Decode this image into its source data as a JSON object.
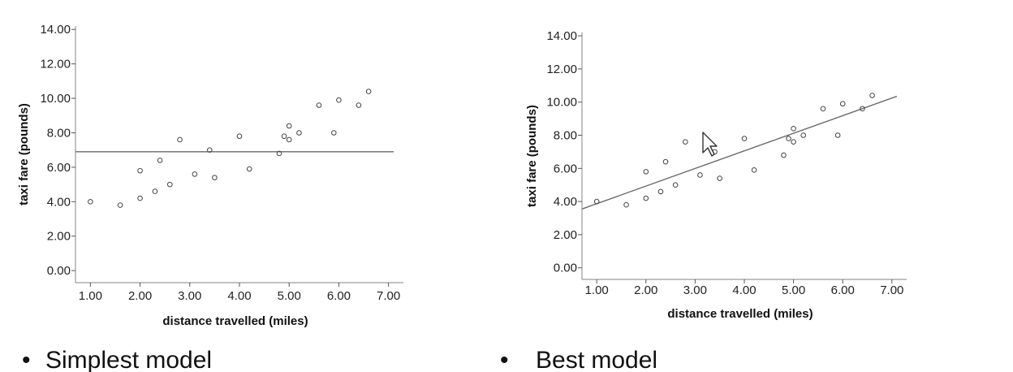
{
  "bullets": {
    "left": "Simplest model",
    "right": "Best model"
  },
  "chart_data": [
    {
      "type": "scatter",
      "title": "",
      "xlabel": "distance travelled (miles)",
      "ylabel": "taxi fare (pounds)",
      "xlim": [
        0.7,
        7.3
      ],
      "ylim": [
        -0.7,
        14.2
      ],
      "x_ticks": [
        "1.00",
        "2.00",
        "3.00",
        "4.00",
        "5.00",
        "6.00",
        "7.00"
      ],
      "y_ticks": [
        "0.00",
        "2.00",
        "4.00",
        "6.00",
        "8.00",
        "10.00",
        "12.00",
        "14.00"
      ],
      "points": [
        {
          "x": 1.0,
          "y": 4.0
        },
        {
          "x": 1.6,
          "y": 3.8
        },
        {
          "x": 2.0,
          "y": 4.2
        },
        {
          "x": 2.0,
          "y": 5.8
        },
        {
          "x": 2.3,
          "y": 4.6
        },
        {
          "x": 2.4,
          "y": 6.4
        },
        {
          "x": 2.6,
          "y": 5.0
        },
        {
          "x": 2.8,
          "y": 7.6
        },
        {
          "x": 3.1,
          "y": 5.6
        },
        {
          "x": 3.4,
          "y": 7.0
        },
        {
          "x": 3.5,
          "y": 5.4
        },
        {
          "x": 4.0,
          "y": 7.8
        },
        {
          "x": 4.2,
          "y": 5.9
        },
        {
          "x": 4.8,
          "y": 6.8
        },
        {
          "x": 4.9,
          "y": 7.8
        },
        {
          "x": 5.0,
          "y": 7.6
        },
        {
          "x": 5.0,
          "y": 8.4
        },
        {
          "x": 5.2,
          "y": 8.0
        },
        {
          "x": 5.6,
          "y": 9.6
        },
        {
          "x": 5.9,
          "y": 8.0
        },
        {
          "x": 6.0,
          "y": 9.9
        },
        {
          "x": 6.4,
          "y": 9.6
        },
        {
          "x": 6.6,
          "y": 10.4
        }
      ],
      "fit_line": {
        "kind": "horizontal",
        "y": 6.9
      }
    },
    {
      "type": "scatter",
      "title": "",
      "xlabel": "distance travelled (miles)",
      "ylabel": "taxi fare (pounds)",
      "xlim": [
        0.7,
        7.3
      ],
      "ylim": [
        -0.7,
        14.2
      ],
      "x_ticks": [
        "1.00",
        "2.00",
        "3.00",
        "4.00",
        "5.00",
        "6.00",
        "7.00"
      ],
      "y_ticks": [
        "0.00",
        "2.00",
        "4.00",
        "6.00",
        "8.00",
        "10.00",
        "12.00",
        "14.00"
      ],
      "points": [
        {
          "x": 1.0,
          "y": 4.0
        },
        {
          "x": 1.6,
          "y": 3.8
        },
        {
          "x": 2.0,
          "y": 4.2
        },
        {
          "x": 2.0,
          "y": 5.8
        },
        {
          "x": 2.3,
          "y": 4.6
        },
        {
          "x": 2.4,
          "y": 6.4
        },
        {
          "x": 2.6,
          "y": 5.0
        },
        {
          "x": 2.8,
          "y": 7.6
        },
        {
          "x": 3.1,
          "y": 5.6
        },
        {
          "x": 3.4,
          "y": 7.0
        },
        {
          "x": 3.5,
          "y": 5.4
        },
        {
          "x": 4.0,
          "y": 7.8
        },
        {
          "x": 4.2,
          "y": 5.9
        },
        {
          "x": 4.8,
          "y": 6.8
        },
        {
          "x": 4.9,
          "y": 7.8
        },
        {
          "x": 5.0,
          "y": 7.6
        },
        {
          "x": 5.0,
          "y": 8.4
        },
        {
          "x": 5.2,
          "y": 8.0
        },
        {
          "x": 5.6,
          "y": 9.6
        },
        {
          "x": 5.9,
          "y": 8.0
        },
        {
          "x": 6.0,
          "y": 9.9
        },
        {
          "x": 6.4,
          "y": 9.6
        },
        {
          "x": 6.6,
          "y": 10.4
        }
      ],
      "fit_line": {
        "kind": "regression",
        "x": [
          0.7,
          7.1
        ],
        "y": [
          3.55,
          10.35
        ]
      }
    }
  ]
}
